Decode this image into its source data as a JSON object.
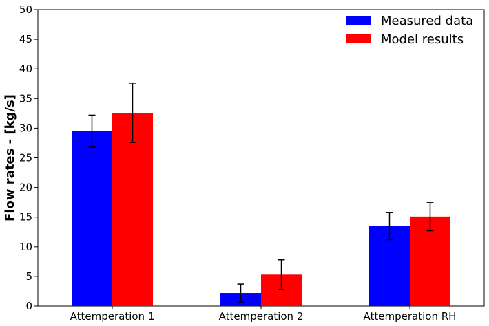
{
  "chart_data": {
    "type": "bar",
    "title": "",
    "xlabel": "",
    "ylabel": "Flow rates - [kg/s]",
    "ylim": [
      0,
      50
    ],
    "yticks": [
      0,
      5,
      10,
      15,
      20,
      25,
      30,
      35,
      40,
      45,
      50
    ],
    "categories": [
      "Attemperation 1",
      "Attemperation 2",
      "Attemperation RH"
    ],
    "series": [
      {
        "name": "Measured data",
        "color": "#0000ff",
        "values": [
          29.5,
          2.2,
          13.5
        ],
        "errors": [
          2.7,
          1.5,
          2.3
        ]
      },
      {
        "name": "Model results",
        "color": "#ff0000",
        "values": [
          32.6,
          5.3,
          15.1
        ],
        "errors": [
          5.0,
          2.5,
          2.4
        ]
      }
    ],
    "legend_position": "top-right",
    "grid": false
  }
}
